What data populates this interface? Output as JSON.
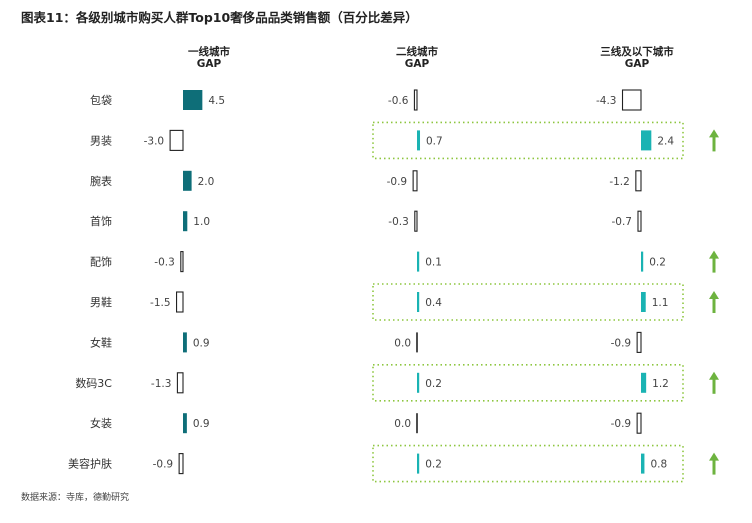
{
  "title": "图表11：各级别城市购买人群Top10奢侈品品类销售额（百分比差异）",
  "source": "数据来源：寺库，德勤研究",
  "colors": {
    "tier1_positive": "#0e6e78",
    "tier_positive_light": "#1ab3b3",
    "negative_outline": "#222222",
    "highlight_border": "#8dc63f",
    "arrow": "#6db33f",
    "label": "#444444"
  },
  "chart_data": {
    "type": "bar",
    "orientation": "horizontal",
    "categories": [
      "包袋",
      "男装",
      "腕表",
      "首饰",
      "配饰",
      "男鞋",
      "女鞋",
      "数码3C",
      "女装",
      "美容护肤"
    ],
    "series": [
      {
        "name": "一线城市\nGAP",
        "values": [
          4.5,
          -3.0,
          2.0,
          1.0,
          -0.3,
          -1.5,
          0.9,
          -1.3,
          0.9,
          -0.9
        ]
      },
      {
        "name": "二线城市\nGAP",
        "values": [
          -0.6,
          0.7,
          -0.9,
          -0.3,
          0.1,
          0.4,
          0.0,
          0.2,
          0.0,
          0.2
        ]
      },
      {
        "name": "三线及以下城市\nGAP",
        "values": [
          -4.3,
          2.4,
          -1.2,
          -0.7,
          0.2,
          1.1,
          -0.9,
          1.2,
          -0.9,
          0.8
        ]
      }
    ],
    "value_labels": [
      [
        "4.5",
        "-3.0",
        "2.0",
        "1.0",
        "-0.3",
        "-1.5",
        "0.9",
        "-1.3",
        "0.9",
        "-0.9"
      ],
      [
        "-0.6",
        "0.7",
        "-0.9",
        "-0.3",
        "0.1",
        "0.4",
        "0.0",
        "0.2",
        "0.0",
        "0.2"
      ],
      [
        "-4.3",
        "2.4",
        "-1.2",
        "-0.7",
        "0.2",
        "1.1",
        "-0.9",
        "1.2",
        "-0.9",
        "0.8"
      ]
    ],
    "highlighted_categories": [
      "男装",
      "男鞋",
      "数码3C",
      "美容护肤"
    ],
    "up_arrow_categories": [
      "男装",
      "配饰",
      "男鞋",
      "数码3C",
      "美容护肤"
    ],
    "grid": false,
    "legend": "none"
  }
}
